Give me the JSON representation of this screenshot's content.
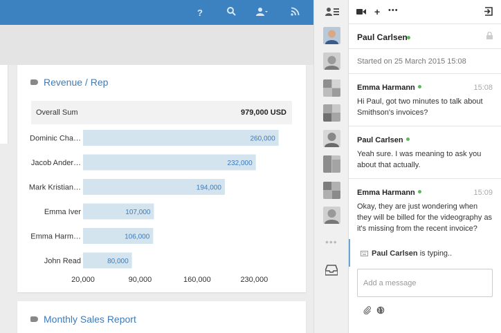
{
  "topbar": {
    "icons": [
      "help-icon",
      "search-icon",
      "user-menu-icon",
      "rss-icon"
    ],
    "help_label": "?"
  },
  "cards": {
    "revenue": {
      "title": "Revenue / Rep",
      "sum_label": "Overall Sum",
      "sum_value": "979,000 USD"
    },
    "monthly": {
      "title": "Monthly Sales Report"
    }
  },
  "chart_data": {
    "type": "bar",
    "orientation": "horizontal",
    "title": "Revenue / Rep",
    "categories": [
      "Dominic Cha…",
      "Jacob Ander…",
      "Mark Kristian…",
      "Emma Iver",
      "Emma Harm…",
      "John Read"
    ],
    "values": [
      260000,
      232000,
      194000,
      107000,
      106000,
      80000
    ],
    "value_labels": [
      "260,000",
      "232,000",
      "194,000",
      "107,000",
      "106,000",
      "80,000"
    ],
    "xticks": [
      "20,000",
      "90,000",
      "160,000",
      "230,000"
    ],
    "xtick_values": [
      20000,
      90000,
      160000,
      230000
    ],
    "xlim": [
      20000,
      290000
    ],
    "bar_color": "#d3e4ee",
    "label_color": "#3d7bbb",
    "grid": false
  },
  "chat": {
    "toolbar_icons": [
      "video-icon",
      "plus-icon",
      "more-icon",
      "exit-icon"
    ],
    "contact_name": "Paul Carlsen",
    "contact_status": "online",
    "started": "Started on 25 March 2015 15:08",
    "messages": [
      {
        "author": "Emma Harmann",
        "time": "15:08",
        "text": "Hi Paul, got two minutes to talk about Smithson's invoices?"
      },
      {
        "author": "Paul Carlsen",
        "time": "",
        "text": "Yeah sure. I was meaning to ask you about that actually."
      },
      {
        "author": "Emma Harmann",
        "time": "15:09",
        "text": "Okay, they are just wondering when they will be billed for the videography as it's missing from the recent invoice?"
      }
    ],
    "typing_name": "Paul Carlsen",
    "typing_suffix": " is typing..",
    "input_placeholder": "Add a message"
  },
  "colors": {
    "topbar": "#3d82c0",
    "accent": "#3d7bbb",
    "online": "#5cb85c"
  }
}
